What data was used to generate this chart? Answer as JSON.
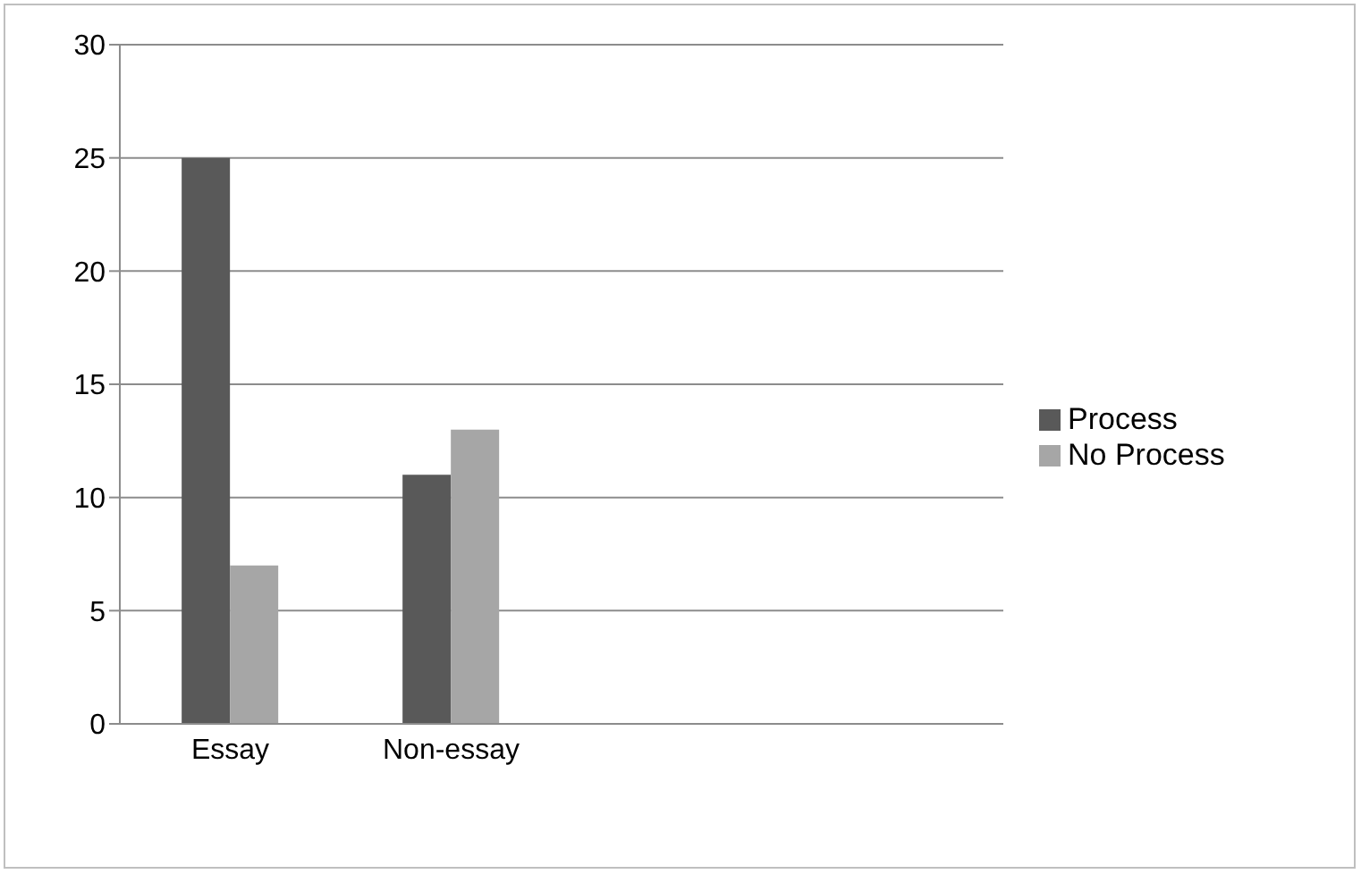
{
  "chart_data": {
    "type": "bar",
    "categories": [
      "Essay",
      "Non-essay",
      null,
      null
    ],
    "series": [
      {
        "name": "Process",
        "color": "#595959",
        "values": [
          25,
          11,
          null,
          null
        ]
      },
      {
        "name": "No Process",
        "color": "#a6a6a6",
        "values": [
          7,
          13,
          null,
          null
        ]
      }
    ],
    "ylim": [
      0,
      30
    ],
    "yticks": [
      0,
      5,
      10,
      15,
      20,
      25,
      30
    ],
    "grid": "y",
    "legend": "right"
  }
}
